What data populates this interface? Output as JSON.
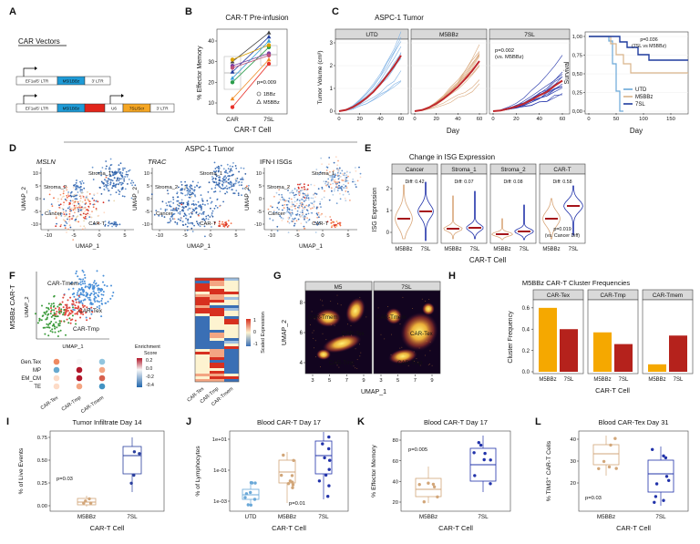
{
  "panels": {
    "A": {
      "letter": "A",
      "title": "CAR Vectors",
      "construct_1": [
        "EF1a/5' LTR",
        "M5/1BBz",
        "3' LTR"
      ],
      "construct_2": [
        "EF1a/5' LTR",
        "M5/1BBz",
        "U6",
        "7SL/Scr",
        "3' LTR"
      ]
    },
    "B": {
      "letter": "B",
      "title": "CAR-T Pre-infusion",
      "ylabel": "% Effector Memory",
      "yticks": [
        "10",
        "20",
        "30",
        "40"
      ],
      "categories": [
        "CAR",
        "7SL"
      ],
      "xlabel": "CAR-T Cell",
      "annotation": "p=0.009",
      "legend": [
        "1BBz",
        "M5BBz"
      ],
      "pairs": [
        [
          8,
          29
        ],
        [
          12,
          31
        ],
        [
          20,
          37
        ],
        [
          25,
          42
        ],
        [
          28,
          34
        ],
        [
          30,
          44
        ],
        [
          31,
          38
        ],
        [
          22,
          40
        ],
        [
          27,
          33
        ]
      ],
      "pair_colors": [
        "#e8312a",
        "#f08a24",
        "#2a9d4a",
        "#1f3c9e",
        "#7b3fa0",
        "#444444",
        "#d9a000",
        "#3aa0d8",
        "#c0507a"
      ]
    },
    "C": {
      "letter": "C",
      "title": "ASPC-1 Tumor",
      "facets": [
        "UTD",
        "M5BBz",
        "7SL"
      ],
      "ylabel": "Tumor Volume (cm³)",
      "yticks": [
        "0",
        "1",
        "2",
        "3"
      ],
      "xticks": [
        "0",
        "20",
        "40",
        "60"
      ],
      "xlabel": "Day",
      "annotation": [
        "p=0.002",
        "(vs. M5BBz)"
      ],
      "survival": {
        "ylabel": "Survival",
        "yticks": [
          "0,00",
          "0,25",
          "0,50",
          "0,75",
          "1,00"
        ],
        "xticks": [
          "0",
          "50",
          "100",
          "150"
        ],
        "xlabel": "Day",
        "annotation": [
          "p=0.036",
          "(7SL vs M5BBz)"
        ],
        "legend": [
          "UTD",
          "M5BBz",
          "7SL"
        ]
      }
    },
    "D": {
      "letter": "D",
      "title": "ASPC-1 Tumor",
      "genes": [
        "MSLN",
        "TRAC",
        "IFN-I ISGs"
      ],
      "clusters": [
        "Stroma_2",
        "Stroma_1",
        "Cancer",
        "CAR-T"
      ],
      "xlabel": "UMAP_1",
      "ylabel": "UMAP_2",
      "xticks": [
        "-10",
        "-5",
        "0",
        "5"
      ],
      "yticks": [
        "-10",
        "-5",
        "0",
        "5",
        "10"
      ]
    },
    "E": {
      "letter": "E",
      "title": "Change in ISG Expression",
      "facets": [
        "Cancer",
        "Stroma_1",
        "Stroma_2",
        "CAR-T"
      ],
      "diffs": [
        "Diff: 0.42",
        "Diff: 0.07",
        "Diff: 0.08",
        "Diff: 0.58"
      ],
      "ylabel": "ISG Expression",
      "yticks": [
        "0",
        "1",
        "2"
      ],
      "categories": [
        "M5BBz",
        "7SL"
      ],
      "xlabel": "CAR-T Cell",
      "annotation": [
        "p=0.019",
        "(vs. Cancer Diff)"
      ]
    },
    "F": {
      "letter": "F",
      "ylabel": "M5BBz CAR-T",
      "umap_ylabel": "UMAP_2",
      "umap_xlabel": "UMAP_1",
      "clusters": [
        "CAR-Tmem",
        "CAR-Tex",
        "CAR-Tmp"
      ],
      "signatures": [
        "Gen.Tex",
        "MP",
        "EM_CM",
        "TE"
      ],
      "columns": [
        "CAR-Tex",
        "CAR-Tmp",
        "CAR-Tmem"
      ],
      "legend_title": [
        "Enrichment",
        "Score"
      ],
      "legend_ticks": [
        "0.2",
        "0.0",
        "-0.2",
        "-0.4"
      ],
      "heatmap_legend": "Scaled Expression",
      "heatmap_ticks": [
        "1",
        "0",
        "-1"
      ]
    },
    "G": {
      "letter": "G",
      "facets": [
        "M5",
        "7SL"
      ],
      "clusters": [
        "CAR-Tmem",
        "CAR-Tex",
        "CAR-Tmp"
      ],
      "ylabel": "UMAP_2",
      "xlabel": "UMAP_1",
      "yticks": [
        "4",
        "6",
        "8"
      ],
      "xticks": [
        "3",
        "5",
        "7",
        "9"
      ]
    },
    "H": {
      "letter": "H",
      "title": "M5BBz CAR-T Cluster Frequencies",
      "facets": [
        "CAR-Tex",
        "CAR-Tmp",
        "CAR-Tmem"
      ],
      "series": [
        {
          "name": "M5BBz",
          "color": "#f5a800",
          "values": [
            0.6,
            0.37,
            0.07
          ]
        },
        {
          "name": "7SL",
          "color": "#b5221c",
          "values": [
            0.4,
            0.26,
            0.34
          ]
        }
      ],
      "ylim": [
        0,
        0.65
      ],
      "yticks": [
        {
          "value": 0,
          "label": "0.0"
        },
        0.2,
        0.4,
        0.6
      ],
      "ylabel": "Cluster Frequency",
      "xlabel": "CAR-T Cell"
    },
    "I": {
      "letter": "I",
      "title": "Tumor Infiltrate Day 14",
      "ylabel": "% of Live Events",
      "yticks": [
        "0.00",
        "0.25",
        "0.50",
        "0.75"
      ],
      "categories": [
        "M5BBz",
        "7SL"
      ],
      "xlabel": "CAR-T Cell",
      "annotation": "p=0.03"
    },
    "J": {
      "letter": "J",
      "title": "Blood CAR-T Day 17",
      "ylabel": "% of Lymphocytes",
      "yticks": [
        "1e-03",
        "1e-01",
        "1e+01"
      ],
      "categories": [
        "UTD",
        "M5BBz",
        "7SL"
      ],
      "xlabel": "CAR-T Cell",
      "annotation": "p=0.01"
    },
    "K": {
      "letter": "K",
      "title": "Blood CAR-T Day 17",
      "ylabel": "% Effector Memory",
      "yticks": [
        "20",
        "40",
        "60",
        "80"
      ],
      "categories": [
        "M5BBz",
        "7SL"
      ],
      "xlabel": "CAR-T Cell",
      "annotation": "p=0.005"
    },
    "L": {
      "letter": "L",
      "title": "Blood CAR-Tex Day 31",
      "ylabel": "% TIM3⁺ CAR-T Cells",
      "yticks": [
        "20",
        "30",
        "40"
      ],
      "categories": [
        "M5BBz",
        "7SL"
      ],
      "xlabel": "CAR-T Cell",
      "annotation": "p=0.03"
    }
  }
}
